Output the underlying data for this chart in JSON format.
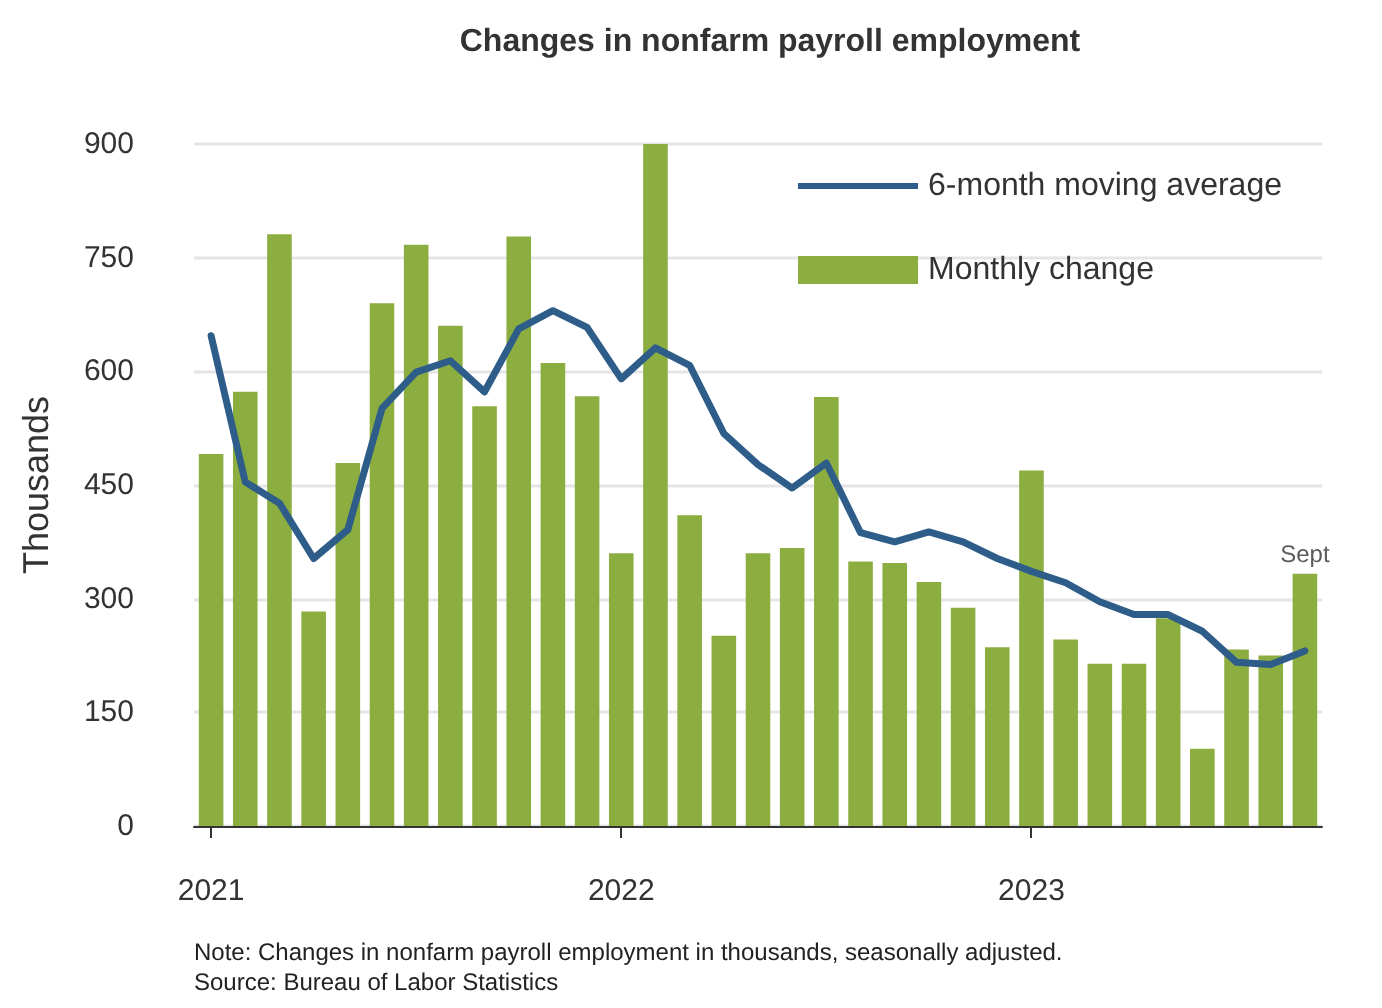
{
  "chart_data": {
    "type": "bar",
    "title": "Changes in nonfarm payroll employment",
    "ylabel": "Thousands",
    "categories": [
      "2021",
      null,
      null,
      null,
      null,
      null,
      null,
      null,
      null,
      null,
      null,
      null,
      "2022",
      null,
      null,
      null,
      null,
      null,
      null,
      null,
      null,
      null,
      null,
      null,
      "2023",
      null,
      null,
      null,
      null,
      null,
      null,
      null,
      null
    ],
    "series": [
      {
        "name": "6-month moving average",
        "type": "line",
        "color": "#2e5d8a",
        "values": [
          647,
          454,
          426,
          353,
          391,
          551,
          599,
          614,
          573,
          656,
          680,
          658,
          590,
          631,
          608,
          518,
          477,
          446,
          479,
          387,
          375,
          388,
          375,
          353,
          336,
          321,
          296,
          279,
          279,
          257,
          216,
          213,
          231
        ]
      },
      {
        "name": "Monthly change",
        "color": "#8cae40",
        "values": [
          491,
          573,
          781,
          283,
          479,
          690,
          767,
          660,
          554,
          778,
          611,
          567,
          360,
          900,
          410,
          251,
          360,
          367,
          566,
          349,
          347,
          322,
          288,
          236,
          469,
          246,
          214,
          214,
          274,
          102,
          233,
          225,
          333
        ]
      }
    ],
    "ylim": [
      0,
      900
    ],
    "yticks": [
      0,
      150,
      300,
      450,
      600,
      750,
      900
    ],
    "grid": "y",
    "legend": "top right",
    "marker": "none",
    "line_style": "solid",
    "annotations": [
      {
        "text": "Sept",
        "y": 333
      },
      "Note: Changes in nonfarm payroll employment in thousands, seasonally adjusted.",
      "Source: Bureau of Labor Statistics"
    ]
  }
}
